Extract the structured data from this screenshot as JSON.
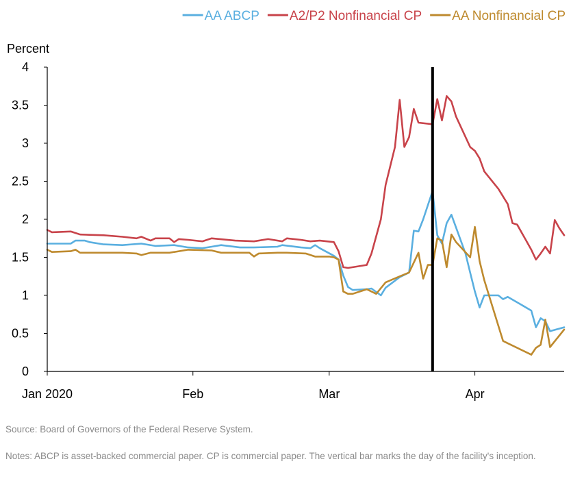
{
  "chart_data": {
    "type": "line",
    "title": "",
    "ylabel": "Percent",
    "xlabel": "",
    "ylim": [
      0,
      4
    ],
    "yticks": [
      "0",
      "0.5",
      "1",
      "1.5",
      "2",
      "2.5",
      "3",
      "3.5",
      "4"
    ],
    "yticks_values": [
      0,
      0.5,
      1,
      1.5,
      2,
      2.5,
      3,
      3.5,
      4
    ],
    "xlim": [
      "2020-01-01",
      "2020-04-20"
    ],
    "xticks": [
      {
        "label": "Jan 2020",
        "date": "2020-01-01"
      },
      {
        "label": "Feb",
        "date": "2020-02-01"
      },
      {
        "label": "Mar",
        "date": "2020-03-01"
      },
      {
        "label": "Apr",
        "date": "2020-04-01"
      }
    ],
    "legend_position": "top",
    "grid": false,
    "vertical_marker": {
      "date": "2020-03-23",
      "color": "#000000"
    },
    "series": [
      {
        "name": "AA ABCP",
        "color": "#5aafe0",
        "points": [
          [
            "2020-01-01",
            1.68
          ],
          [
            "2020-01-06",
            1.68
          ],
          [
            "2020-01-07",
            1.72
          ],
          [
            "2020-01-09",
            1.72
          ],
          [
            "2020-01-10",
            1.7
          ],
          [
            "2020-01-13",
            1.67
          ],
          [
            "2020-01-17",
            1.66
          ],
          [
            "2020-01-21",
            1.68
          ],
          [
            "2020-01-24",
            1.65
          ],
          [
            "2020-01-28",
            1.66
          ],
          [
            "2020-01-31",
            1.63
          ],
          [
            "2020-02-03",
            1.62
          ],
          [
            "2020-02-05",
            1.64
          ],
          [
            "2020-02-07",
            1.66
          ],
          [
            "2020-02-11",
            1.63
          ],
          [
            "2020-02-14",
            1.63
          ],
          [
            "2020-02-19",
            1.64
          ],
          [
            "2020-02-20",
            1.66
          ],
          [
            "2020-02-24",
            1.63
          ],
          [
            "2020-02-26",
            1.62
          ],
          [
            "2020-02-27",
            1.66
          ],
          [
            "2020-02-28",
            1.62
          ],
          [
            "2020-03-02",
            1.52
          ],
          [
            "2020-03-03",
            1.47
          ],
          [
            "2020-03-04",
            1.26
          ],
          [
            "2020-03-05",
            1.11
          ],
          [
            "2020-03-06",
            1.07
          ],
          [
            "2020-03-09",
            1.08
          ],
          [
            "2020-03-10",
            1.09
          ],
          [
            "2020-03-12",
            1.0
          ],
          [
            "2020-03-13",
            1.1
          ],
          [
            "2020-03-16",
            1.24
          ],
          [
            "2020-03-18",
            1.3
          ],
          [
            "2020-03-19",
            1.85
          ],
          [
            "2020-03-20",
            1.84
          ],
          [
            "2020-03-21",
            2.0
          ],
          [
            "2020-03-23",
            2.37
          ],
          [
            "2020-03-24",
            1.79
          ],
          [
            "2020-03-25",
            1.68
          ],
          [
            "2020-03-26",
            1.95
          ],
          [
            "2020-03-27",
            2.06
          ],
          [
            "2020-03-30",
            1.55
          ],
          [
            "2020-03-31",
            1.3
          ],
          [
            "2020-04-01",
            1.05
          ],
          [
            "2020-04-02",
            0.84
          ],
          [
            "2020-04-03",
            1.0
          ],
          [
            "2020-04-06",
            1.0
          ],
          [
            "2020-04-07",
            0.95
          ],
          [
            "2020-04-08",
            0.98
          ],
          [
            "2020-04-13",
            0.8
          ],
          [
            "2020-04-14",
            0.58
          ],
          [
            "2020-04-15",
            0.7
          ],
          [
            "2020-04-16",
            0.66
          ],
          [
            "2020-04-17",
            0.53
          ],
          [
            "2020-04-20",
            0.58
          ]
        ]
      },
      {
        "name": "A2/P2 Nonfinancial CP",
        "color": "#c8434a",
        "points": [
          [
            "2020-01-01",
            1.86
          ],
          [
            "2020-01-02",
            1.83
          ],
          [
            "2020-01-06",
            1.84
          ],
          [
            "2020-01-07",
            1.82
          ],
          [
            "2020-01-08",
            1.8
          ],
          [
            "2020-01-13",
            1.79
          ],
          [
            "2020-01-17",
            1.77
          ],
          [
            "2020-01-20",
            1.75
          ],
          [
            "2020-01-21",
            1.77
          ],
          [
            "2020-01-23",
            1.72
          ],
          [
            "2020-01-24",
            1.75
          ],
          [
            "2020-01-27",
            1.75
          ],
          [
            "2020-01-28",
            1.7
          ],
          [
            "2020-01-29",
            1.74
          ],
          [
            "2020-01-31",
            1.73
          ],
          [
            "2020-02-03",
            1.71
          ],
          [
            "2020-02-05",
            1.75
          ],
          [
            "2020-02-10",
            1.72
          ],
          [
            "2020-02-14",
            1.71
          ],
          [
            "2020-02-17",
            1.74
          ],
          [
            "2020-02-20",
            1.71
          ],
          [
            "2020-02-21",
            1.75
          ],
          [
            "2020-02-24",
            1.73
          ],
          [
            "2020-02-26",
            1.71
          ],
          [
            "2020-02-28",
            1.72
          ],
          [
            "2020-03-02",
            1.7
          ],
          [
            "2020-03-03",
            1.58
          ],
          [
            "2020-03-04",
            1.37
          ],
          [
            "2020-03-05",
            1.36
          ],
          [
            "2020-03-09",
            1.4
          ],
          [
            "2020-03-10",
            1.55
          ],
          [
            "2020-03-12",
            2.0
          ],
          [
            "2020-03-13",
            2.45
          ],
          [
            "2020-03-15",
            2.95
          ],
          [
            "2020-03-16",
            3.57
          ],
          [
            "2020-03-17",
            2.95
          ],
          [
            "2020-03-18",
            3.08
          ],
          [
            "2020-03-19",
            3.45
          ],
          [
            "2020-03-20",
            3.27
          ],
          [
            "2020-03-23",
            3.25
          ],
          [
            "2020-03-24",
            3.58
          ],
          [
            "2020-03-25",
            3.3
          ],
          [
            "2020-03-26",
            3.62
          ],
          [
            "2020-03-27",
            3.55
          ],
          [
            "2020-03-28",
            3.35
          ],
          [
            "2020-03-31",
            2.95
          ],
          [
            "2020-04-01",
            2.9
          ],
          [
            "2020-04-02",
            2.8
          ],
          [
            "2020-04-03",
            2.63
          ],
          [
            "2020-04-06",
            2.4
          ],
          [
            "2020-04-08",
            2.2
          ],
          [
            "2020-04-09",
            1.95
          ],
          [
            "2020-04-10",
            1.93
          ],
          [
            "2020-04-13",
            1.6
          ],
          [
            "2020-04-14",
            1.47
          ],
          [
            "2020-04-15",
            1.55
          ],
          [
            "2020-04-16",
            1.64
          ],
          [
            "2020-04-17",
            1.55
          ],
          [
            "2020-04-18",
            1.99
          ],
          [
            "2020-04-19",
            1.88
          ],
          [
            "2020-04-20",
            1.79
          ]
        ]
      },
      {
        "name": "AA Nonfinancial CP",
        "color": "#be8a2e",
        "points": [
          [
            "2020-01-01",
            1.6
          ],
          [
            "2020-01-02",
            1.57
          ],
          [
            "2020-01-06",
            1.58
          ],
          [
            "2020-01-07",
            1.6
          ],
          [
            "2020-01-08",
            1.56
          ],
          [
            "2020-01-13",
            1.56
          ],
          [
            "2020-01-17",
            1.56
          ],
          [
            "2020-01-20",
            1.55
          ],
          [
            "2020-01-21",
            1.53
          ],
          [
            "2020-01-23",
            1.56
          ],
          [
            "2020-01-27",
            1.56
          ],
          [
            "2020-01-31",
            1.6
          ],
          [
            "2020-02-05",
            1.59
          ],
          [
            "2020-02-07",
            1.56
          ],
          [
            "2020-02-13",
            1.56
          ],
          [
            "2020-02-14",
            1.51
          ],
          [
            "2020-02-15",
            1.55
          ],
          [
            "2020-02-19",
            1.56
          ],
          [
            "2020-02-21",
            1.56
          ],
          [
            "2020-02-25",
            1.55
          ],
          [
            "2020-02-27",
            1.51
          ],
          [
            "2020-03-01",
            1.51
          ],
          [
            "2020-03-02",
            1.5
          ],
          [
            "2020-03-03",
            1.47
          ],
          [
            "2020-03-04",
            1.05
          ],
          [
            "2020-03-05",
            1.02
          ],
          [
            "2020-03-06",
            1.02
          ],
          [
            "2020-03-09",
            1.08
          ],
          [
            "2020-03-10",
            1.05
          ],
          [
            "2020-03-11",
            1.02
          ],
          [
            "2020-03-13",
            1.17
          ],
          [
            "2020-03-16",
            1.25
          ],
          [
            "2020-03-18",
            1.3
          ],
          [
            "2020-03-20",
            1.56
          ],
          [
            "2020-03-21",
            1.22
          ],
          [
            "2020-03-22",
            1.4
          ],
          [
            "2020-03-23",
            1.4
          ],
          [
            "2020-03-24",
            1.75
          ],
          [
            "2020-03-25",
            1.72
          ],
          [
            "2020-03-26",
            1.37
          ],
          [
            "2020-03-27",
            1.8
          ],
          [
            "2020-03-28",
            1.7
          ],
          [
            "2020-03-31",
            1.5
          ],
          [
            "2020-04-01",
            1.9
          ],
          [
            "2020-04-02",
            1.45
          ],
          [
            "2020-04-03",
            1.2
          ],
          [
            "2020-04-06",
            0.6
          ],
          [
            "2020-04-07",
            0.4
          ],
          [
            "2020-04-08",
            0.37
          ],
          [
            "2020-04-13",
            0.22
          ],
          [
            "2020-04-14",
            0.31
          ],
          [
            "2020-04-15",
            0.35
          ],
          [
            "2020-04-16",
            0.68
          ],
          [
            "2020-04-17",
            0.32
          ],
          [
            "2020-04-20",
            0.55
          ]
        ]
      }
    ]
  },
  "footer": {
    "source": "Source:  Board of Governors of the Federal Reserve System.",
    "notes": "Notes: ABCP is asset-backed commercial paper. CP is commercial paper. The vertical bar marks the day of the facility's inception."
  }
}
